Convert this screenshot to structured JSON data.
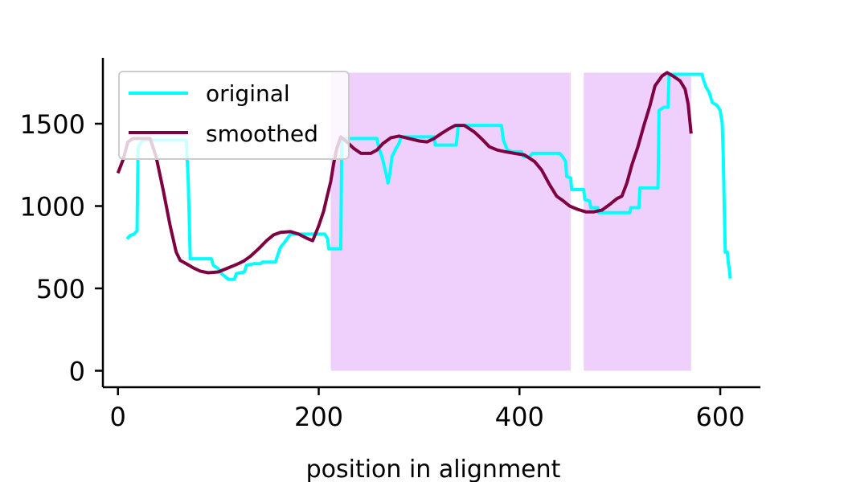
{
  "chart_data": {
    "type": "line",
    "title": "",
    "xlabel": "position in alignment",
    "ylabel": "",
    "xlim": [
      -15,
      640
    ],
    "ylim": [
      -100,
      1900
    ],
    "x_ticks": [
      0,
      200,
      400,
      600
    ],
    "y_ticks": [
      0,
      500,
      1000,
      1500
    ],
    "grid": false,
    "legend_position": "top-left",
    "shaded_regions": [
      {
        "x_start": 212,
        "x_end": 451,
        "y_start": 0,
        "y_end": 1810,
        "color": "#efd0fd"
      },
      {
        "x_start": 464,
        "x_end": 571,
        "y_start": 0,
        "y_end": 1810,
        "color": "#efd0fd"
      }
    ],
    "series": [
      {
        "name": "original",
        "color": "#00ffff",
        "points": [
          [
            9,
            800
          ],
          [
            12,
            820
          ],
          [
            16,
            830
          ],
          [
            19,
            850
          ],
          [
            20,
            1350
          ],
          [
            22,
            1380
          ],
          [
            25,
            1400
          ],
          [
            68,
            1400
          ],
          [
            70,
            1150
          ],
          [
            72,
            680
          ],
          [
            93,
            680
          ],
          [
            95,
            640
          ],
          [
            100,
            620
          ],
          [
            103,
            590
          ],
          [
            107,
            570
          ],
          [
            110,
            555
          ],
          [
            116,
            555
          ],
          [
            118,
            590
          ],
          [
            126,
            600
          ],
          [
            128,
            640
          ],
          [
            135,
            650
          ],
          [
            142,
            650
          ],
          [
            144,
            660
          ],
          [
            157,
            660
          ],
          [
            159,
            700
          ],
          [
            162,
            750
          ],
          [
            166,
            780
          ],
          [
            172,
            830
          ],
          [
            206,
            830
          ],
          [
            209,
            800
          ],
          [
            210,
            740
          ],
          [
            222,
            740
          ],
          [
            223,
            1410
          ],
          [
            258,
            1410
          ],
          [
            260,
            1350
          ],
          [
            263,
            1300
          ],
          [
            265,
            1250
          ],
          [
            267,
            1200
          ],
          [
            269,
            1140
          ],
          [
            271,
            1200
          ],
          [
            273,
            1300
          ],
          [
            277,
            1350
          ],
          [
            280,
            1380
          ],
          [
            282,
            1420
          ],
          [
            315,
            1420
          ],
          [
            316,
            1370
          ],
          [
            337,
            1370
          ],
          [
            339,
            1490
          ],
          [
            382,
            1490
          ],
          [
            384,
            1400
          ],
          [
            388,
            1340
          ],
          [
            393,
            1330
          ],
          [
            402,
            1330
          ],
          [
            404,
            1300
          ],
          [
            410,
            1300
          ],
          [
            413,
            1320
          ],
          [
            440,
            1320
          ],
          [
            443,
            1300
          ],
          [
            446,
            1270
          ],
          [
            447,
            1180
          ],
          [
            451,
            1170
          ],
          [
            452,
            1100
          ],
          [
            464,
            1100
          ],
          [
            465,
            1040
          ],
          [
            470,
            1030
          ],
          [
            471,
            990
          ],
          [
            478,
            990
          ],
          [
            479,
            960
          ],
          [
            510,
            960
          ],
          [
            511,
            990
          ],
          [
            519,
            990
          ],
          [
            520,
            1110
          ],
          [
            538,
            1110
          ],
          [
            539,
            1580
          ],
          [
            544,
            1600
          ],
          [
            548,
            1600
          ],
          [
            549,
            1800
          ],
          [
            582,
            1800
          ],
          [
            583,
            1770
          ],
          [
            586,
            1720
          ],
          [
            589,
            1690
          ],
          [
            592,
            1630
          ],
          [
            597,
            1610
          ],
          [
            600,
            1580
          ],
          [
            602,
            1500
          ],
          [
            603,
            1300
          ],
          [
            604,
            1000
          ],
          [
            605,
            720
          ],
          [
            607,
            720
          ],
          [
            608,
            660
          ],
          [
            609,
            620
          ],
          [
            610,
            560
          ]
        ]
      },
      {
        "name": "smoothed",
        "color": "#7f0041",
        "points": [
          [
            0,
            1200
          ],
          [
            5,
            1280
          ],
          [
            10,
            1390
          ],
          [
            15,
            1410
          ],
          [
            32,
            1410
          ],
          [
            38,
            1300
          ],
          [
            45,
            1100
          ],
          [
            52,
            880
          ],
          [
            58,
            720
          ],
          [
            62,
            670
          ],
          [
            68,
            650
          ],
          [
            75,
            625
          ],
          [
            82,
            605
          ],
          [
            90,
            595
          ],
          [
            100,
            600
          ],
          [
            110,
            625
          ],
          [
            118,
            645
          ],
          [
            125,
            665
          ],
          [
            132,
            695
          ],
          [
            140,
            740
          ],
          [
            148,
            790
          ],
          [
            155,
            825
          ],
          [
            162,
            840
          ],
          [
            172,
            845
          ],
          [
            180,
            830
          ],
          [
            188,
            805
          ],
          [
            194,
            790
          ],
          [
            200,
            880
          ],
          [
            205,
            970
          ],
          [
            208,
            1050
          ],
          [
            212,
            1150
          ],
          [
            215,
            1260
          ],
          [
            218,
            1350
          ],
          [
            222,
            1420
          ],
          [
            228,
            1390
          ],
          [
            235,
            1350
          ],
          [
            242,
            1320
          ],
          [
            252,
            1320
          ],
          [
            258,
            1340
          ],
          [
            264,
            1380
          ],
          [
            272,
            1415
          ],
          [
            280,
            1425
          ],
          [
            290,
            1410
          ],
          [
            300,
            1395
          ],
          [
            308,
            1390
          ],
          [
            315,
            1410
          ],
          [
            322,
            1440
          ],
          [
            330,
            1470
          ],
          [
            336,
            1490
          ],
          [
            345,
            1490
          ],
          [
            355,
            1450
          ],
          [
            362,
            1410
          ],
          [
            370,
            1360
          ],
          [
            378,
            1340
          ],
          [
            386,
            1330
          ],
          [
            395,
            1320
          ],
          [
            405,
            1310
          ],
          [
            415,
            1270
          ],
          [
            422,
            1220
          ],
          [
            430,
            1130
          ],
          [
            437,
            1060
          ],
          [
            444,
            1030
          ],
          [
            450,
            1000
          ],
          [
            458,
            980
          ],
          [
            466,
            965
          ],
          [
            474,
            965
          ],
          [
            482,
            975
          ],
          [
            490,
            1010
          ],
          [
            497,
            1045
          ],
          [
            502,
            1060
          ],
          [
            507,
            1140
          ],
          [
            512,
            1250
          ],
          [
            518,
            1360
          ],
          [
            524,
            1490
          ],
          [
            530,
            1610
          ],
          [
            535,
            1730
          ],
          [
            542,
            1790
          ],
          [
            547,
            1810
          ],
          [
            553,
            1790
          ],
          [
            560,
            1760
          ],
          [
            565,
            1710
          ],
          [
            568,
            1620
          ],
          [
            571,
            1440
          ]
        ]
      }
    ]
  }
}
